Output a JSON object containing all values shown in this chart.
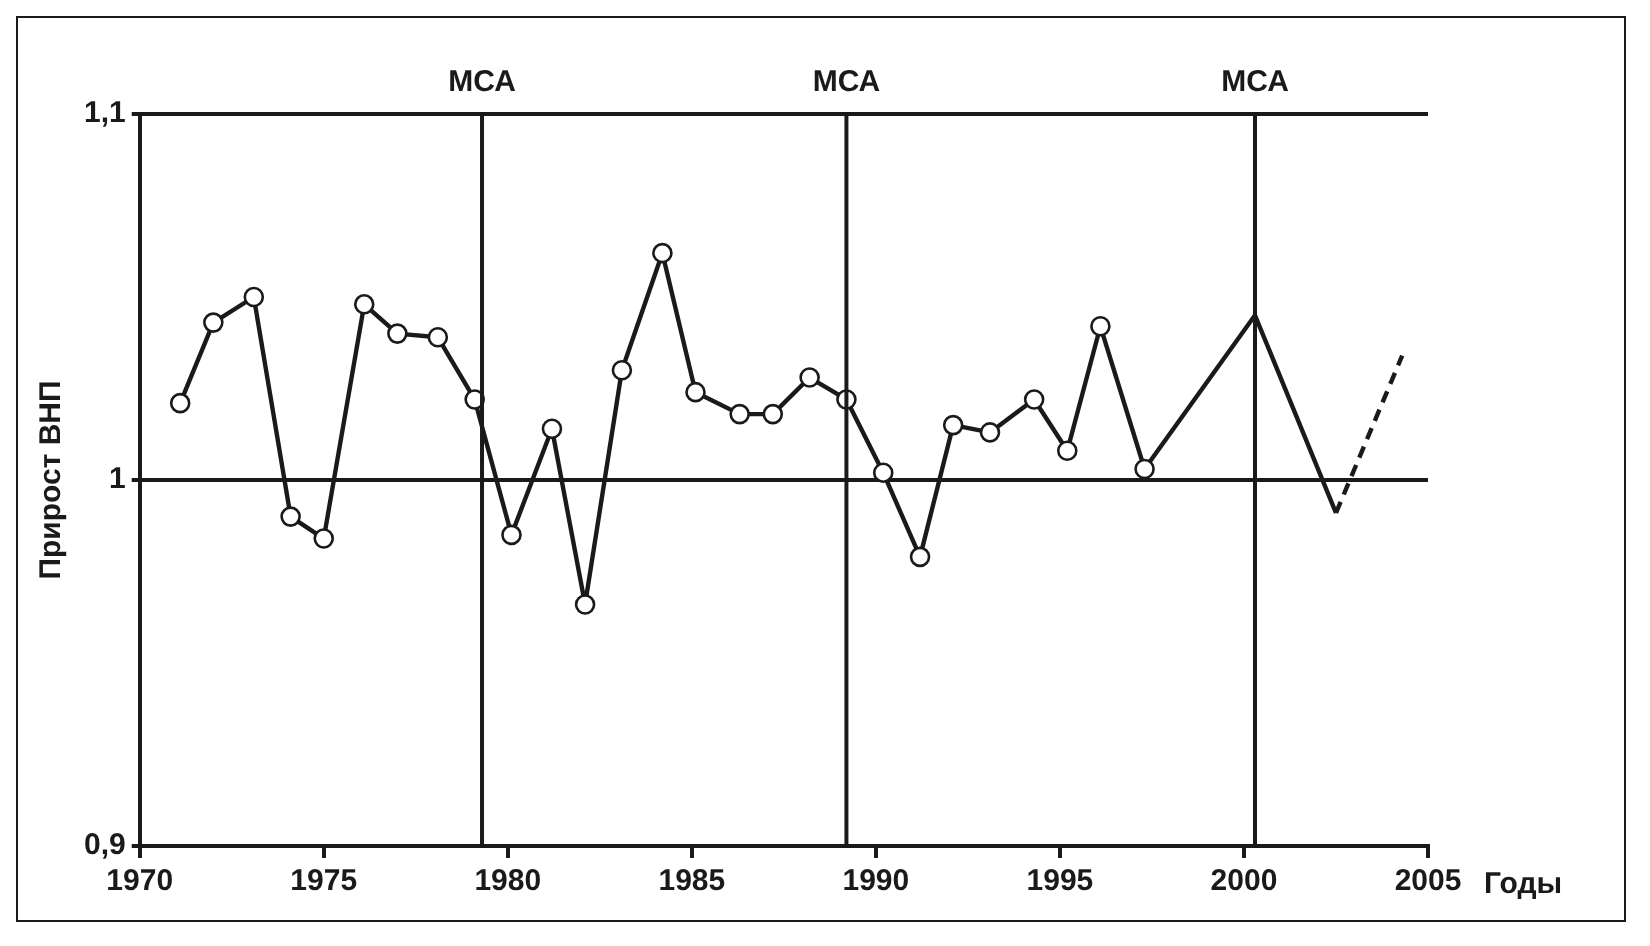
{
  "chart_data": {
    "type": "line",
    "xlabel": "Годы",
    "ylabel": "Прирост ВНП",
    "xlim": [
      1970,
      2005
    ],
    "xticks": [
      1970,
      1975,
      1980,
      1985,
      1990,
      1995,
      2000,
      2005
    ],
    "ylim": [
      0.9,
      1.1
    ],
    "yticks": [
      {
        "value": 0.9,
        "label": "0,9"
      },
      1,
      {
        "value": 1.1,
        "label": "1,1"
      }
    ],
    "grid": "y",
    "legend": false,
    "marker": "circle",
    "line_style": "solid",
    "series": [
      {
        "color": "#1a1a1a",
        "x": [
          1971.1,
          1972.0,
          1973.1,
          1974.1,
          1975.0,
          1976.1,
          1977.0,
          1978.1,
          1979.1,
          1980.1,
          1981.2,
          1982.1,
          1983.1,
          1984.2,
          1985.1,
          1986.3,
          1987.2,
          1988.2,
          1989.2,
          1990.2,
          1991.2,
          1992.1,
          1993.1,
          1994.3,
          1995.2,
          1996.1,
          1997.3
        ],
        "values": [
          1.021,
          1.043,
          1.05,
          0.99,
          0.984,
          1.048,
          1.04,
          1.039,
          1.022,
          0.985,
          1.014,
          0.966,
          1.03,
          1.062,
          1.024,
          1.018,
          1.018,
          1.028,
          1.022,
          1.002,
          0.979,
          1.015,
          1.013,
          1.022,
          1.008,
          1.042,
          1.003
        ]
      },
      {
        "color": "#1a1a1a",
        "marker": "none",
        "x": [
          1997.3,
          2000.3,
          2002.5
        ],
        "values": [
          1.003,
          1.045,
          0.991
        ]
      },
      {
        "color": "#1a1a1a",
        "marker": "none",
        "line_style": "dashed",
        "x": [
          2002.5,
          2004.3
        ],
        "values": [
          0.991,
          1.034
        ]
      }
    ],
    "ref_lines": [
      {
        "axis": "x",
        "value": 1979.3,
        "label": "МСА"
      },
      {
        "axis": "x",
        "value": 1989.2,
        "label": "МСА"
      },
      {
        "axis": "x",
        "value": 2000.3,
        "label": "МСА"
      }
    ]
  }
}
